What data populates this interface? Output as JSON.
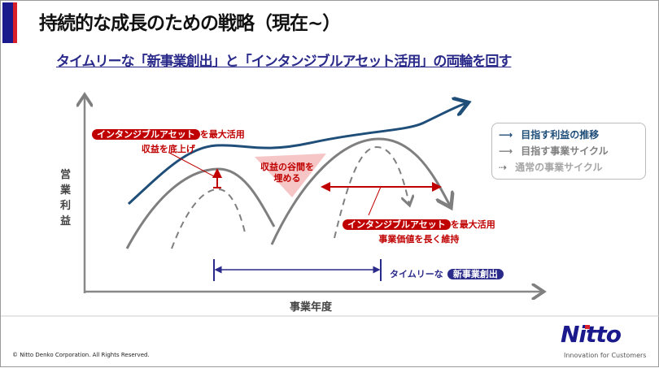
{
  "header": {
    "title": "持続的な成長のための戦略（現在~）",
    "subtitle": "タイムリーな「新事業創出」と「インタンジブルアセット活用」の両輪を回す"
  },
  "diagram": {
    "y_axis_label": "営業利益",
    "x_axis_label": "事業年度",
    "callout1": {
      "pill": "インタンジブルアセット",
      "suffix": "を最大活用",
      "line2": "収益を底上げ"
    },
    "valley": {
      "line1": "収益の谷間を",
      "line2": "埋める"
    },
    "callout2": {
      "pill": "インタンジブルアセット",
      "suffix": "を最大活用",
      "line2": "事業価値を長く維持"
    },
    "timely": {
      "prefix": "タイムリーな",
      "pill": "新事業創出"
    },
    "legend": [
      {
        "label": "目指す利益の推移",
        "color": "#1f4e79"
      },
      {
        "label": "目指す事業サイクル",
        "color": "#7f7f7f"
      },
      {
        "label": "通常の事業サイクル",
        "color": "#a6a6a6"
      }
    ]
  },
  "footer": {
    "copyright": "© Nitto Denko Corporation. All Rights Reserved.",
    "logo": "Nitto",
    "tagline": "Innovation for Customers"
  }
}
